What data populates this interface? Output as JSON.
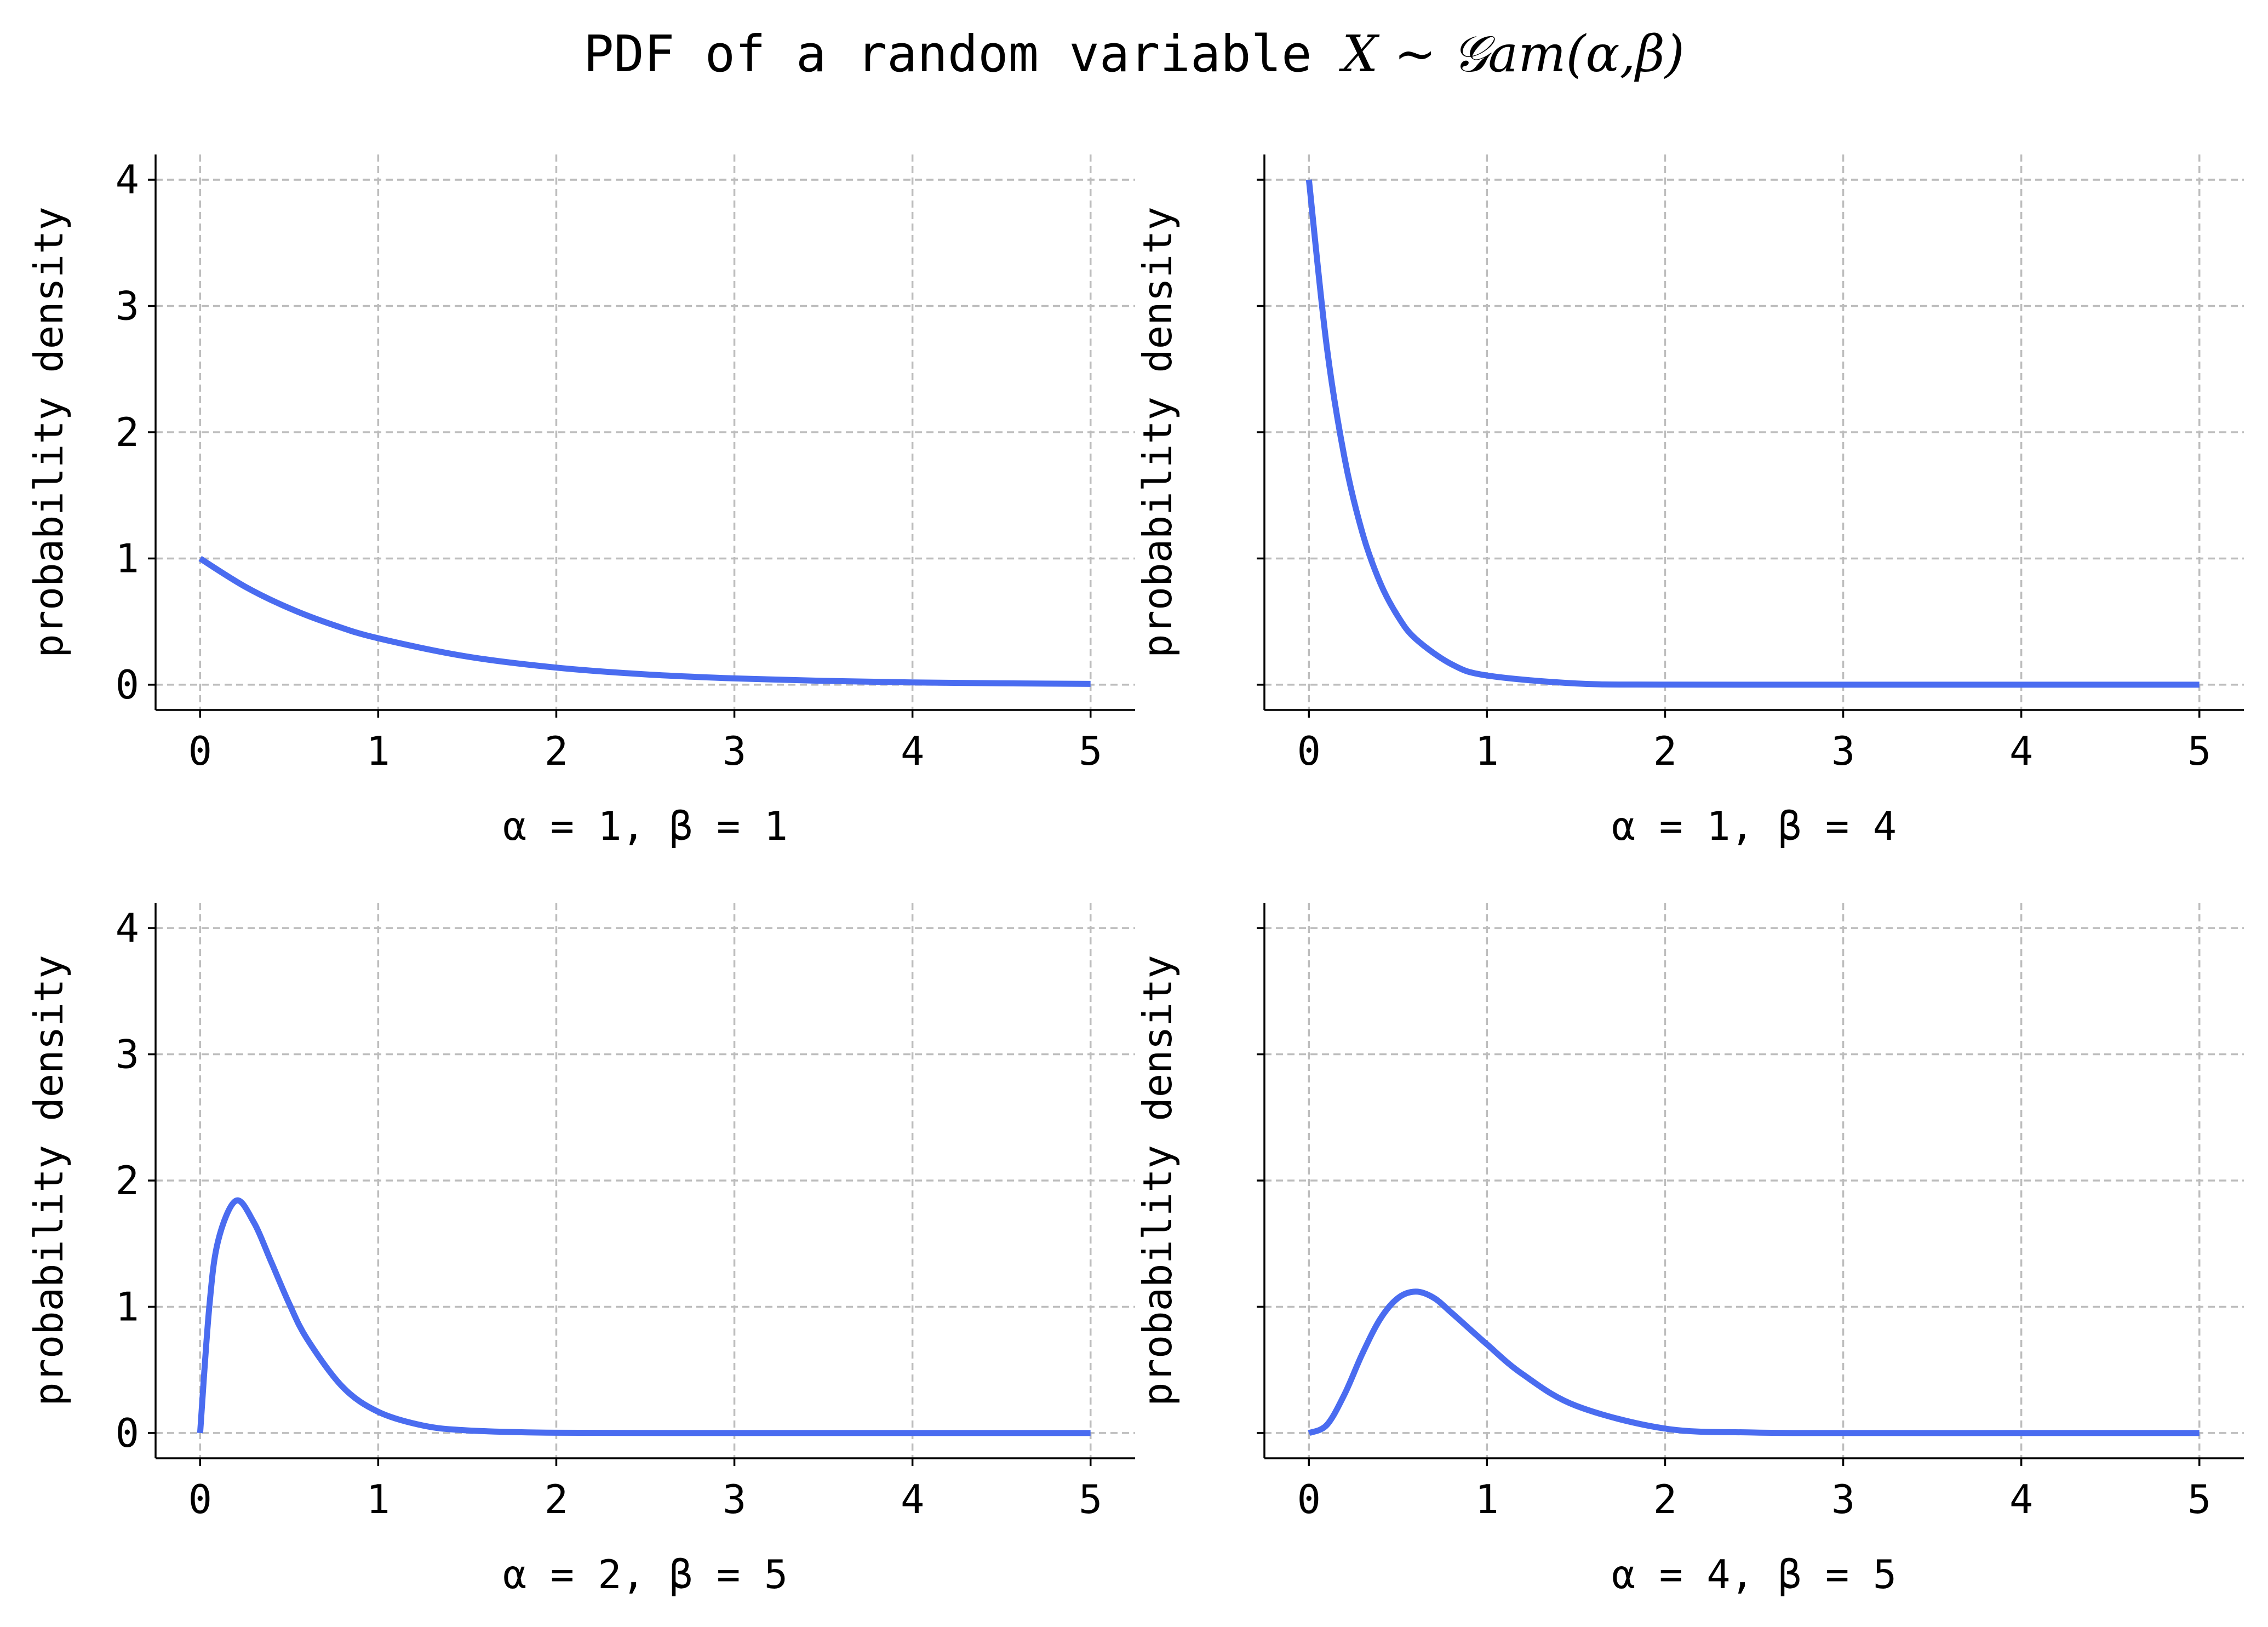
{
  "title": {
    "prefix": "PDF of a random variable ",
    "math": "X ~ 𝒢am(α,β)"
  },
  "colors": {
    "curve": "#4a6cf0",
    "grid": "#bdbdbd"
  },
  "chart_data": [
    {
      "type": "line",
      "alpha": 1,
      "beta": 1,
      "xlabel": "α = 1,  β = 1",
      "ylabel": "probability density",
      "xlim": [
        -0.25,
        5.25
      ],
      "ylim": [
        -0.2,
        4.2
      ],
      "xticks": [
        0,
        1,
        2,
        3,
        4,
        5
      ],
      "yticks": [
        0,
        1,
        2,
        3,
        4
      ],
      "show_ytick_labels": true,
      "grid": true,
      "x": [
        0,
        0.25,
        0.5,
        0.75,
        1,
        1.5,
        2,
        2.5,
        3,
        3.5,
        4,
        4.5,
        5
      ],
      "y": [
        1.0,
        0.7788,
        0.6065,
        0.4724,
        0.3679,
        0.2231,
        0.1353,
        0.0821,
        0.0498,
        0.0302,
        0.0183,
        0.0111,
        0.0067
      ]
    },
    {
      "type": "line",
      "alpha": 1,
      "beta": 4,
      "xlabel": "α = 1,  β = 4",
      "ylabel": "probability density",
      "xlim": [
        -0.25,
        5.25
      ],
      "ylim": [
        -0.2,
        4.2
      ],
      "xticks": [
        0,
        1,
        2,
        3,
        4,
        5
      ],
      "yticks": [
        0,
        1,
        2,
        3,
        4
      ],
      "show_ytick_labels": false,
      "grid": true,
      "x": [
        0,
        0.1,
        0.2,
        0.3,
        0.4,
        0.5,
        0.6,
        0.8,
        1,
        1.5,
        2,
        3,
        4,
        5
      ],
      "y": [
        4.0,
        2.681,
        1.797,
        1.205,
        0.808,
        0.541,
        0.363,
        0.163,
        0.073,
        0.01,
        0.001,
        0.0,
        0.0,
        0.0
      ]
    },
    {
      "type": "line",
      "alpha": 2,
      "beta": 5,
      "xlabel": "α = 2,  β = 5",
      "ylabel": "probability density",
      "xlim": [
        -0.25,
        5.25
      ],
      "ylim": [
        -0.2,
        4.2
      ],
      "xticks": [
        0,
        1,
        2,
        3,
        4,
        5
      ],
      "yticks": [
        0,
        1,
        2,
        3,
        4
      ],
      "show_ytick_labels": true,
      "grid": true,
      "x": [
        0,
        0.05,
        0.1,
        0.2,
        0.3,
        0.4,
        0.5,
        0.6,
        0.8,
        1,
        1.25,
        1.5,
        2,
        3,
        4,
        5
      ],
      "y": [
        0.0,
        0.973,
        1.516,
        1.839,
        1.673,
        1.353,
        1.026,
        0.747,
        0.366,
        0.168,
        0.06,
        0.021,
        0.002,
        0.0,
        0.0,
        0.0
      ]
    },
    {
      "type": "line",
      "alpha": 4,
      "beta": 5,
      "xlabel": "α = 4,  β = 5",
      "ylabel": "probability density",
      "xlim": [
        -0.25,
        5.25
      ],
      "ylim": [
        -0.2,
        4.2
      ],
      "xticks": [
        0,
        1,
        2,
        3,
        4,
        5
      ],
      "yticks": [
        0,
        1,
        2,
        3,
        4
      ],
      "show_ytick_labels": false,
      "grid": true,
      "x": [
        0,
        0.1,
        0.2,
        0.3,
        0.4,
        0.5,
        0.6,
        0.7,
        0.8,
        1,
        1.2,
        1.5,
        2,
        2.5,
        3,
        4,
        5
      ],
      "y": [
        0.0,
        0.063,
        0.307,
        0.628,
        0.902,
        1.069,
        1.12,
        1.072,
        0.954,
        0.702,
        0.466,
        0.216,
        0.035,
        0.004,
        0.0,
        0.0,
        0.0
      ]
    }
  ]
}
